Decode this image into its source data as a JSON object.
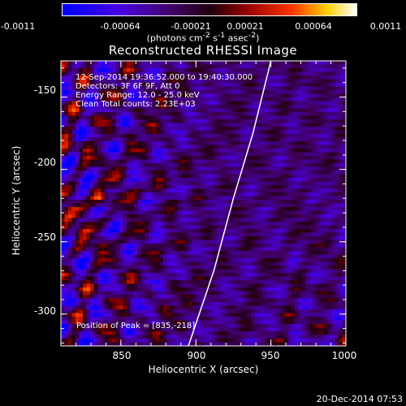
{
  "colorbar": {
    "ticks": [
      "-0.0011",
      "-0.00064",
      "-0.00021",
      "0.00021",
      "0.00064",
      "0.0011"
    ],
    "units_prefix": "(photons cm",
    "units_sup1": "-2",
    "units_mid1": " s",
    "units_sup2": "-1",
    "units_mid2": " asec",
    "units_sup3": "-2",
    "units_suffix": ")"
  },
  "chart_data": {
    "type": "heatmap",
    "title": "Reconstructed RHESSI Image",
    "xlabel": "Heliocentric X (arcsec)",
    "ylabel": "Heliocentric Y (arcsec)",
    "xlim": [
      810,
      1000
    ],
    "ylim": [
      -322,
      -125
    ],
    "x_ticks": [
      850,
      900,
      950,
      1000
    ],
    "y_ticks": [
      -150,
      -200,
      -250,
      -300
    ],
    "value_range": [
      -0.0011,
      0.0011
    ],
    "limb_line": [
      [
        895,
        -322
      ],
      [
        912,
        -270
      ],
      [
        925,
        -220
      ],
      [
        938,
        -175
      ],
      [
        950,
        -125
      ]
    ],
    "peak": [
      835,
      -218
    ],
    "annotations": {
      "time_range": "12-Sep-2014 19:36:52.000 to 19:40:30.000",
      "detectors": "Detectors: 3F 6F 9F, Att 0",
      "energy": "Energy Range: 12.0 - 25.0 keV",
      "clean": "Clean    Total counts: 2.23E+03",
      "peak_text": "Position of Peak = [835,-218]"
    }
  },
  "footer": {
    "timestamp": "20-Dec-2014 07:53"
  }
}
